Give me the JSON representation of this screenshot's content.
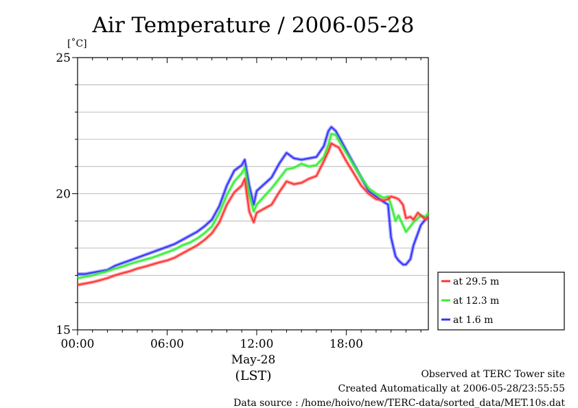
{
  "chart_data": {
    "type": "line",
    "title": "Air Temperature / 2006-05-28",
    "ylabel": "[˚C]",
    "ylim": [
      15,
      25
    ],
    "xlim_hours": [
      0,
      23.5
    ],
    "yticks": [
      "15",
      "20",
      "25"
    ],
    "xticks": [
      {
        "hour": 0,
        "label": "00:00"
      },
      {
        "hour": 6,
        "label": "06:00"
      },
      {
        "hour": 12,
        "label": "12:00"
      },
      {
        "hour": 18,
        "label": "18:00"
      }
    ],
    "date_label": "May-28",
    "time_zone_label": "(LST)",
    "grid": "horizontal",
    "legend_position": "right, below plot top",
    "x": [
      0,
      0.5,
      1,
      1.5,
      2,
      2.5,
      3,
      3.5,
      4,
      4.5,
      5,
      5.5,
      6,
      6.5,
      7,
      7.5,
      8,
      8.5,
      9,
      9.5,
      10,
      10.5,
      11,
      11.2,
      11.5,
      11.8,
      12,
      12.5,
      13,
      13.5,
      14,
      14.5,
      15,
      15.5,
      16,
      16.5,
      16.8,
      17,
      17.3,
      17.5,
      18,
      18.5,
      19,
      19.5,
      20,
      20.5,
      20.8,
      21,
      21.3,
      21.5,
      21.8,
      22,
      22.3,
      22.5,
      22.8,
      23,
      23.3,
      23.5
    ],
    "series": [
      {
        "name": "at 29.5 m",
        "color": "#ff3333",
        "values": [
          16.65,
          16.7,
          16.75,
          16.82,
          16.9,
          17.0,
          17.08,
          17.15,
          17.25,
          17.32,
          17.4,
          17.48,
          17.55,
          17.65,
          17.8,
          17.95,
          18.1,
          18.3,
          18.55,
          18.95,
          19.6,
          20.05,
          20.3,
          20.55,
          19.35,
          18.95,
          19.3,
          19.45,
          19.6,
          20.05,
          20.45,
          20.35,
          20.4,
          20.55,
          20.65,
          21.2,
          21.55,
          21.85,
          21.75,
          21.7,
          21.2,
          20.75,
          20.3,
          20.0,
          19.8,
          19.75,
          19.8,
          19.9,
          19.85,
          19.8,
          19.6,
          19.1,
          19.15,
          19.05,
          19.3,
          19.2,
          19.05,
          19.15
        ]
      },
      {
        "name": "at 12.3 m",
        "color": "#33ee33",
        "values": [
          16.9,
          16.95,
          17.0,
          17.08,
          17.15,
          17.25,
          17.32,
          17.42,
          17.5,
          17.58,
          17.65,
          17.75,
          17.85,
          17.95,
          18.1,
          18.2,
          18.35,
          18.55,
          18.8,
          19.3,
          19.95,
          20.45,
          20.75,
          20.95,
          19.95,
          19.35,
          19.6,
          19.9,
          20.2,
          20.55,
          20.9,
          20.95,
          21.1,
          21.0,
          21.05,
          21.35,
          21.8,
          22.2,
          22.15,
          21.95,
          21.5,
          21.05,
          20.6,
          20.2,
          20.0,
          19.85,
          19.9,
          19.6,
          19.0,
          19.2,
          18.85,
          18.6,
          18.8,
          18.95,
          19.1,
          19.2,
          19.15,
          19.3
        ]
      },
      {
        "name": "at 1.6 m",
        "color": "#3333ff",
        "values": [
          17.05,
          17.05,
          17.1,
          17.15,
          17.2,
          17.35,
          17.45,
          17.55,
          17.65,
          17.75,
          17.85,
          17.95,
          18.05,
          18.15,
          18.3,
          18.45,
          18.6,
          18.8,
          19.05,
          19.55,
          20.3,
          20.85,
          21.05,
          21.25,
          20.3,
          19.6,
          20.1,
          20.35,
          20.6,
          21.1,
          21.5,
          21.3,
          21.25,
          21.3,
          21.35,
          21.75,
          22.3,
          22.45,
          22.3,
          22.1,
          21.6,
          21.1,
          20.6,
          20.1,
          19.9,
          19.7,
          19.6,
          18.4,
          17.7,
          17.55,
          17.4,
          17.4,
          17.6,
          18.1,
          18.55,
          18.85,
          19.05,
          19.15
        ]
      }
    ]
  },
  "legend": {
    "items": [
      "at 29.5 m",
      "at 12.3 m",
      "at 1.6 m"
    ]
  },
  "footer": {
    "line1": "Observed at TERC Tower site",
    "line2": "Created Automatically at 2006-05-28/23:55:55",
    "line3": "Data source : /home/hoivo/new/TERC-data/sorted_data/MET.10s.dat"
  }
}
